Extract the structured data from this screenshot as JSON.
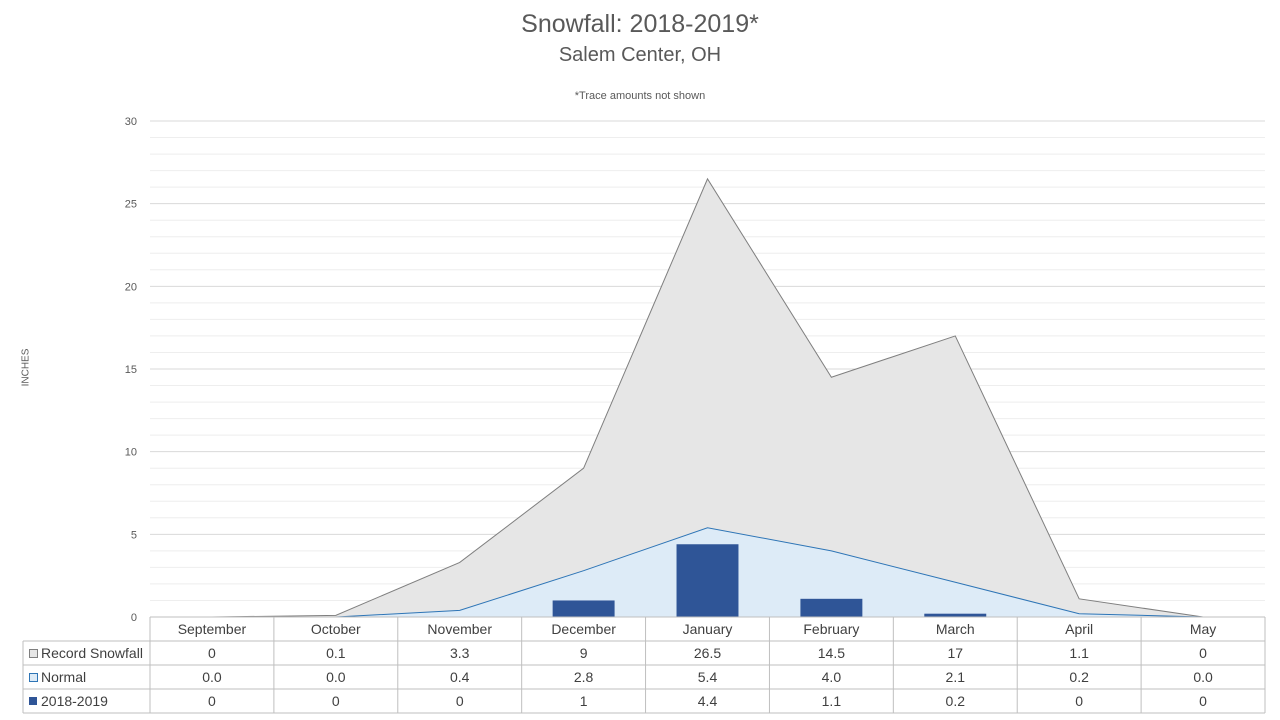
{
  "title": "Snowfall: 2018-2019*",
  "subtitle": "Salem Center, OH",
  "note": "*Trace amounts not shown",
  "chart_data": {
    "type": "area",
    "title": "Snowfall: 2018-2019*",
    "subtitle": "Salem Center, OH",
    "xlabel": "",
    "ylabel": "INCHES",
    "ylim": [
      0,
      30
    ],
    "yticks": [
      "0",
      "5",
      "10",
      "15",
      "20",
      "25",
      "30"
    ],
    "categories": [
      "September",
      "October",
      "November",
      "December",
      "January",
      "February",
      "March",
      "April",
      "May"
    ],
    "grid": true,
    "legend": "data-table",
    "series": [
      {
        "name": "Record Snowfall",
        "kind": "area",
        "color": "#e6e6e6",
        "line_color": "#7f7f7f",
        "values": [
          0,
          0.1,
          3.3,
          9,
          26.5,
          14.5,
          17,
          1.1,
          0
        ],
        "labels": [
          "0",
          "0.1",
          "3.3",
          "9",
          "26.5",
          "14.5",
          "17",
          "1.1",
          "0"
        ]
      },
      {
        "name": "Normal",
        "kind": "area",
        "color": "#ddebf7",
        "line_color": "#2e75b6",
        "values": [
          0.0,
          0.0,
          0.4,
          2.8,
          5.4,
          4.0,
          2.1,
          0.2,
          0.0
        ],
        "labels": [
          "0.0",
          "0.0",
          "0.4",
          "2.8",
          "5.4",
          "4.0",
          "2.1",
          "0.2",
          "0.0"
        ]
      },
      {
        "name": "2018-2019",
        "kind": "bar",
        "color": "#2f5597",
        "values": [
          0,
          0,
          0,
          1,
          4.4,
          1.1,
          0.2,
          0,
          0
        ],
        "labels": [
          "0",
          "0",
          "0",
          "1",
          "4.4",
          "1.1",
          "0.2",
          "0",
          "0"
        ]
      }
    ]
  }
}
